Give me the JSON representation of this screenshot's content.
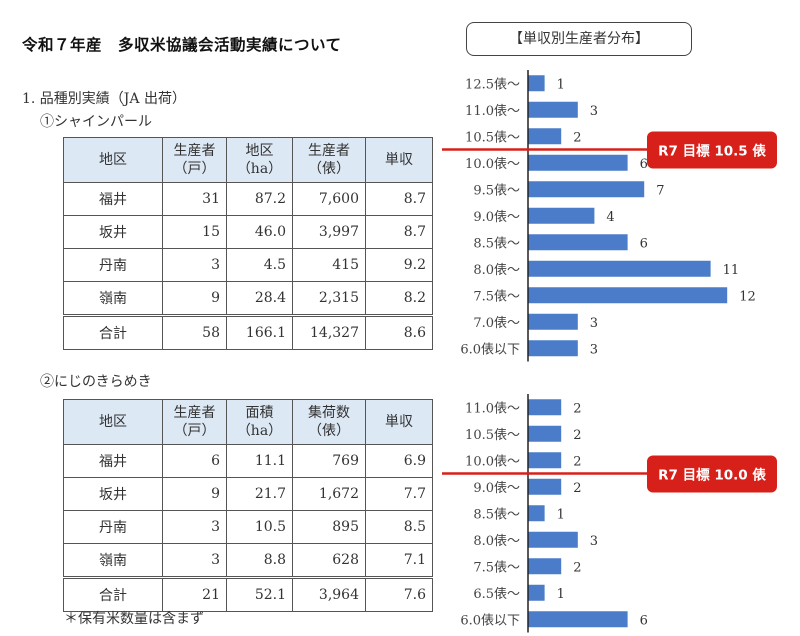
{
  "page": {
    "title": "令和７年産　多収米協議会活動実績について",
    "section_heading": "1. 品種別実績（JA 出荷）",
    "note": "＊保有米数量は含まず"
  },
  "tables": [
    {
      "caption": "①シャインパール",
      "headers": [
        [
          "地区"
        ],
        [
          "生産者",
          "（戸）"
        ],
        [
          "地区",
          "（ha）"
        ],
        [
          "生産者",
          "（俵）"
        ],
        [
          "単収"
        ]
      ],
      "rows": [
        [
          "福井",
          "31",
          "87.2",
          "7,600",
          "8.7"
        ],
        [
          "坂井",
          "15",
          "46.0",
          "3,997",
          "8.7"
        ],
        [
          "丹南",
          "3",
          "4.5",
          "415",
          "9.2"
        ],
        [
          "嶺南",
          "9",
          "28.4",
          "2,315",
          "8.2"
        ]
      ],
      "total": [
        "合計",
        "58",
        "166.1",
        "14,327",
        "8.6"
      ]
    },
    {
      "caption": "②にじのきらめき",
      "headers": [
        [
          "地区"
        ],
        [
          "生産者",
          "（戸）"
        ],
        [
          "面積",
          "（ha）"
        ],
        [
          "集荷数",
          "（俵）"
        ],
        [
          "単収"
        ]
      ],
      "rows": [
        [
          "福井",
          "6",
          "11.1",
          "769",
          "6.9"
        ],
        [
          "坂井",
          "9",
          "21.7",
          "1,672",
          "7.7"
        ],
        [
          "丹南",
          "3",
          "10.5",
          "895",
          "8.5"
        ],
        [
          "嶺南",
          "3",
          "8.8",
          "628",
          "7.1"
        ]
      ],
      "total": [
        "合計",
        "21",
        "52.1",
        "3,964",
        "7.6"
      ]
    }
  ],
  "chart_title": "【単収別生産者分布】",
  "colors": {
    "bar": "#4a7cc9",
    "target": "#d8201a",
    "axis": "#222222"
  },
  "chart_data": [
    {
      "type": "bar",
      "orientation": "horizontal",
      "title": "単収別生産者分布（シャインパール）",
      "categories": [
        "12.5俵～",
        "11.0俵～",
        "10.5俵～",
        "10.0俵～",
        "9.5俵～",
        "9.0俵～",
        "8.5俵～",
        "8.0俵～",
        "7.5俵～",
        "7.0俵～",
        "6.0俵以下"
      ],
      "values": [
        1,
        3,
        2,
        6,
        7,
        4,
        6,
        11,
        12,
        3,
        3
      ],
      "xlim": [
        0,
        12
      ],
      "target": {
        "after_category": "10.5俵～",
        "label": "R7 目標 10.5 俵"
      }
    },
    {
      "type": "bar",
      "orientation": "horizontal",
      "title": "単収別生産者分布（にじのきらめき）",
      "categories": [
        "11.0俵～",
        "10.5俵～",
        "10.0俵～",
        "9.0俵～",
        "8.5俵～",
        "8.0俵～",
        "7.5俵～",
        "6.5俵～",
        "6.0俵以下"
      ],
      "values": [
        2,
        2,
        2,
        2,
        1,
        3,
        2,
        1,
        6
      ],
      "xlim": [
        0,
        12
      ],
      "target": {
        "after_category": "10.0俵～",
        "label": "R7 目標 10.0 俵"
      }
    }
  ]
}
